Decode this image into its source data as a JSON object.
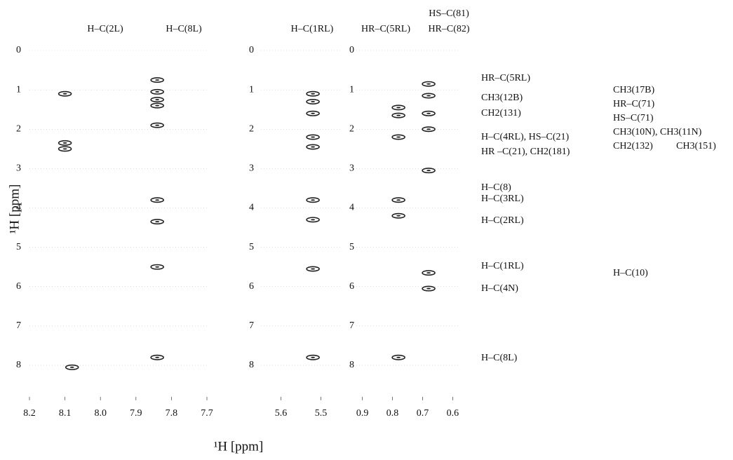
{
  "ylabel": "¹H [ppm]",
  "xlabel": "¹H [ppm]",
  "chart_data": [
    {
      "type": "scatter",
      "headers": [
        "H–C(2L)",
        "H–C(8L)"
      ],
      "xlim": [
        8.2,
        7.7
      ],
      "xticks": [
        8.2,
        8.1,
        {
          "value": 8,
          "label": "8.0"
        },
        7.9,
        7.8,
        7.7
      ],
      "ylim": [
        0,
        8.8
      ],
      "yticks": [
        0,
        1,
        2,
        3,
        4,
        5,
        6,
        7,
        8
      ],
      "color": "#222",
      "x": [
        7.84,
        7.84,
        7.84,
        7.84,
        7.84,
        7.84,
        7.84,
        7.84,
        7.84,
        8.1,
        8.1,
        8.1,
        8.08
      ],
      "series": [
        {
          "values": [
            0.75,
            1.05,
            1.25,
            1.4,
            1.9,
            3.8,
            4.35,
            5.5,
            7.8,
            1.1,
            2.35,
            2.5,
            8.05
          ]
        }
      ]
    },
    {
      "type": "scatter",
      "headers": [
        "H–C(1RL)"
      ],
      "xlim": [
        5.65,
        5.45
      ],
      "xticks": [
        5.6,
        5.5
      ],
      "ylim": [
        0,
        8.8
      ],
      "yticks": [
        0,
        1,
        2,
        3,
        4,
        5,
        6,
        7,
        8
      ],
      "color": "#222",
      "x": [
        5.52,
        5.52,
        5.52,
        5.52,
        5.52,
        5.52,
        5.52,
        5.52,
        5.52
      ],
      "series": [
        {
          "values": [
            1.1,
            1.3,
            1.6,
            2.2,
            2.45,
            3.8,
            4.3,
            5.55,
            7.8
          ]
        }
      ]
    },
    {
      "type": "scatter",
      "headers": [
        "HR–C(5RL)",
        "HS–C(81)",
        "HR–C(82)"
      ],
      "xlim": [
        0.92,
        0.58
      ],
      "xticks": [
        0.9,
        0.8,
        0.7,
        0.6
      ],
      "ylim": [
        0,
        8.8
      ],
      "yticks": [
        0,
        1,
        2,
        3,
        4,
        5,
        6,
        7,
        8
      ],
      "color": "#222",
      "x": [
        0.78,
        0.78,
        0.78,
        0.78,
        0.78,
        0.78,
        0.68,
        0.68,
        0.68,
        0.68,
        0.68,
        0.68,
        0.68
      ],
      "series": [
        {
          "values": [
            1.45,
            1.65,
            2.2,
            3.8,
            4.2,
            7.8,
            0.85,
            1.15,
            1.6,
            2.0,
            3.05,
            5.65,
            6.05
          ]
        }
      ]
    }
  ],
  "annotations": [
    "HR–C(5RL)",
    "CH3(12B)",
    "CH2(131)",
    "H–C(4RL), HS–C(21)",
    "HR –C(21), CH2(181)",
    "H–C(8)",
    "H–C(3RL)",
    "H–C(2RL)",
    "H–C(1RL)",
    "H–C(4N)",
    "H–C(8L)",
    "CH3(17B)",
    "HR–C(71)",
    "HS–C(71)",
    "CH3(10N), CH3(11N)",
    "CH2(132)",
    "CH3(151)",
    "H–C(10)"
  ]
}
